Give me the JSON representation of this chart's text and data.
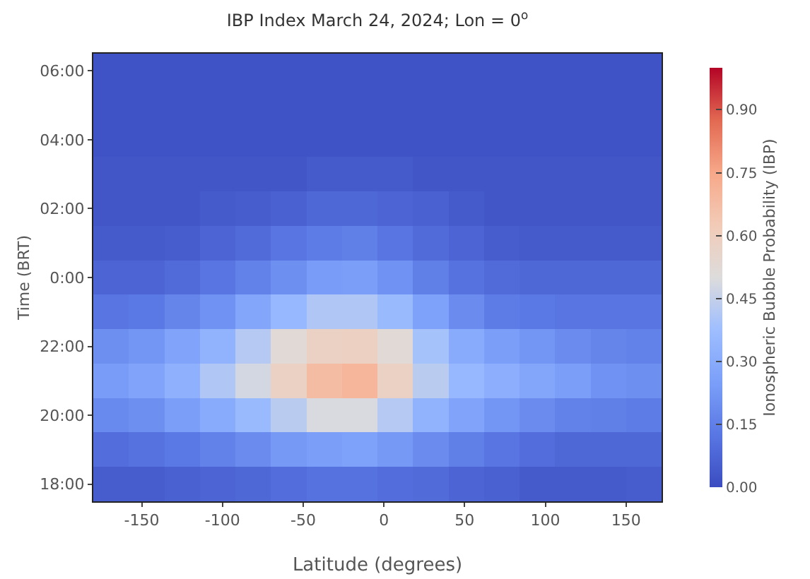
{
  "chart_data": {
    "type": "heatmap",
    "title": "IBP Index March 24, 2024; Lon = 0$^{o}$",
    "xlabel": "Latitude (degrees)",
    "ylabel": "Time (BRT)",
    "clabel": "Ionospheric Bubble Probability (IBP)",
    "x": [
      -169,
      -147,
      -125,
      -103,
      -81,
      -59,
      -37,
      -15,
      7,
      29,
      51,
      73,
      95,
      117,
      139,
      161
    ],
    "y_categories": [
      "06:00",
      null,
      "04:00",
      null,
      "02:00",
      null,
      "0:00",
      null,
      "22:00",
      null,
      "20:00",
      null,
      "18:00"
    ],
    "cells": [
      [
        0.02,
        0.02,
        0.02,
        0.02,
        0.02,
        0.02,
        0.02,
        0.02,
        0.02,
        0.02,
        0.02,
        0.02,
        0.02,
        0.02,
        0.02,
        0.02
      ],
      [
        0.02,
        0.02,
        0.02,
        0.02,
        0.02,
        0.02,
        0.02,
        0.02,
        0.02,
        0.02,
        0.02,
        0.02,
        0.02,
        0.02,
        0.02,
        0.02
      ],
      [
        0.02,
        0.02,
        0.02,
        0.02,
        0.02,
        0.02,
        0.02,
        0.02,
        0.02,
        0.02,
        0.02,
        0.02,
        0.02,
        0.02,
        0.02,
        0.02
      ],
      [
        0.03,
        0.03,
        0.03,
        0.03,
        0.03,
        0.03,
        0.04,
        0.04,
        0.04,
        0.03,
        0.03,
        0.03,
        0.03,
        0.03,
        0.03,
        0.03
      ],
      [
        0.03,
        0.03,
        0.03,
        0.04,
        0.05,
        0.06,
        0.08,
        0.08,
        0.07,
        0.06,
        0.04,
        0.03,
        0.03,
        0.03,
        0.03,
        0.03
      ],
      [
        0.04,
        0.04,
        0.05,
        0.07,
        0.09,
        0.12,
        0.14,
        0.15,
        0.12,
        0.09,
        0.07,
        0.05,
        0.04,
        0.04,
        0.04,
        0.04
      ],
      [
        0.07,
        0.07,
        0.09,
        0.12,
        0.16,
        0.2,
        0.24,
        0.25,
        0.21,
        0.15,
        0.11,
        0.09,
        0.08,
        0.08,
        0.08,
        0.08
      ],
      [
        0.12,
        0.13,
        0.17,
        0.21,
        0.28,
        0.35,
        0.41,
        0.41,
        0.36,
        0.26,
        0.19,
        0.14,
        0.13,
        0.12,
        0.12,
        0.12
      ],
      [
        0.2,
        0.22,
        0.27,
        0.33,
        0.42,
        0.52,
        0.58,
        0.59,
        0.52,
        0.39,
        0.3,
        0.25,
        0.22,
        0.19,
        0.17,
        0.16
      ],
      [
        0.24,
        0.27,
        0.32,
        0.41,
        0.48,
        0.58,
        0.68,
        0.7,
        0.58,
        0.43,
        0.35,
        0.31,
        0.28,
        0.25,
        0.21,
        0.2
      ],
      [
        0.18,
        0.2,
        0.25,
        0.3,
        0.36,
        0.43,
        0.49,
        0.49,
        0.42,
        0.33,
        0.27,
        0.22,
        0.19,
        0.16,
        0.15,
        0.14
      ],
      [
        0.1,
        0.11,
        0.13,
        0.16,
        0.19,
        0.23,
        0.25,
        0.26,
        0.23,
        0.19,
        0.15,
        0.12,
        0.1,
        0.08,
        0.08,
        0.08
      ],
      [
        0.05,
        0.05,
        0.06,
        0.07,
        0.08,
        0.1,
        0.11,
        0.11,
        0.1,
        0.09,
        0.07,
        0.06,
        0.04,
        0.04,
        0.04,
        0.05
      ]
    ],
    "xlim": [
      -180,
      172
    ],
    "xticks": [
      -150,
      -100,
      -50,
      0,
      50,
      100,
      150
    ],
    "clim": [
      0,
      1
    ],
    "cticks": [
      {
        "value": 0,
        "label": "0.00"
      },
      {
        "value": 0.15,
        "label": "0.15"
      },
      {
        "value": 0.3,
        "label": "0.30"
      },
      {
        "value": 0.45,
        "label": "0.45"
      },
      {
        "value": 0.6,
        "label": "0.60"
      },
      {
        "value": 0.75,
        "label": "0.75"
      },
      {
        "value": 0.9,
        "label": "0.90"
      }
    ]
  }
}
